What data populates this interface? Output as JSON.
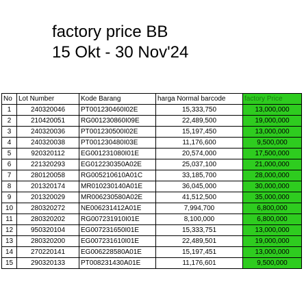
{
  "title": {
    "line1": "factory price BB",
    "line2": "15 Okt - 30 Nov'24"
  },
  "colors": {
    "factory_price_fill": "#2ecc1f"
  },
  "table": {
    "headers": [
      "No",
      "Lot Number",
      "Kode Barang",
      "harga Normal barcode",
      "factory Price"
    ],
    "rows": [
      [
        "1",
        "240320046",
        "PT001230460I02E",
        "15,333,750",
        "13,000,000"
      ],
      [
        "2",
        "210420051",
        "RG001230860I09E",
        "22,489,500",
        "19,000,000"
      ],
      [
        "3",
        "240320036",
        "PT001230500I02E",
        "15,197,450",
        "13,000,000"
      ],
      [
        "4",
        "240320038",
        "PT001230480I03E",
        "11,176,600",
        "9,500,000"
      ],
      [
        "5",
        "920320112",
        "EG001231080I01E",
        "20,574,000",
        "17,500,000"
      ],
      [
        "6",
        "221320293",
        "EG012230350A02E",
        "25,037,100",
        "21,000,000"
      ],
      [
        "7",
        "280120058",
        "RG005210610A01C",
        "33,185,700",
        "28,000,000"
      ],
      [
        "8",
        "201320174",
        "MR010230140A01E",
        "36,045,000",
        "30,000,000"
      ],
      [
        "9",
        "201320029",
        "MR006230580A02E",
        "41,512,500",
        "35,000,000"
      ],
      [
        "10",
        "280320272",
        "NE006231412A01E",
        "7,994,700",
        "6,800,000"
      ],
      [
        "11",
        "280320202",
        "RG007231910I01E",
        "8,100,000",
        "6,800,000"
      ],
      [
        "12",
        "950320104",
        "EG007231650I01E",
        "15,333,751",
        "13,000,000"
      ],
      [
        "13",
        "280320200",
        "EG007231610I01E",
        "22,489,501",
        "19,000,000"
      ],
      [
        "14",
        "270220141",
        "EG006228580A01E",
        "15,197,451",
        "13,000,000"
      ],
      [
        "15",
        "290320133",
        "PT008231430A01E",
        "11,176,601",
        "9,500,000"
      ]
    ]
  }
}
